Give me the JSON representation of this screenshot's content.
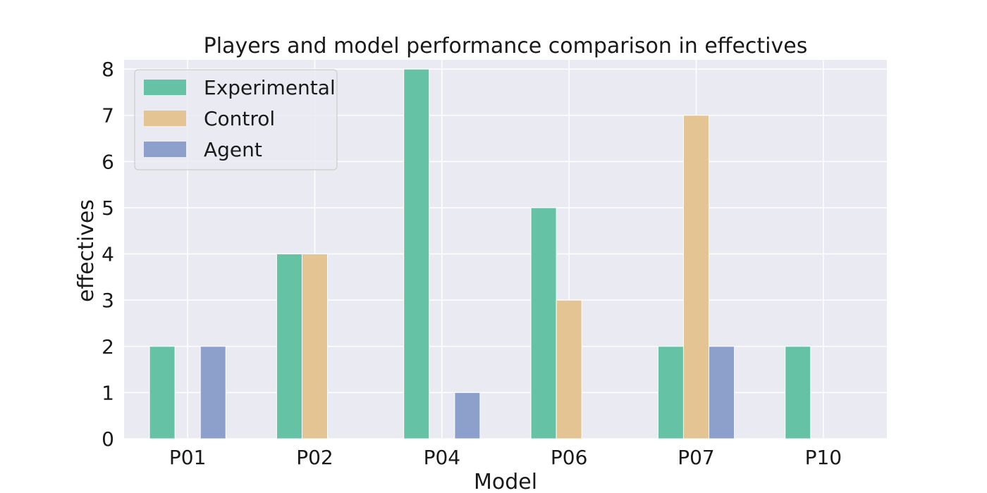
{
  "chart_data": {
    "type": "bar",
    "title": "Players and model performance comparison in effectives",
    "xlabel": "Model",
    "ylabel": "effectives",
    "categories": [
      "P01",
      "P02",
      "P04",
      "P06",
      "P07",
      "P10"
    ],
    "series": [
      {
        "name": "Experimental",
        "color": "#66c2a5",
        "values": [
          2,
          4,
          8,
          5,
          2,
          2
        ]
      },
      {
        "name": "Control",
        "color": "#e5c494",
        "values": [
          0,
          4,
          0,
          3,
          7,
          0
        ]
      },
      {
        "name": "Agent",
        "color": "#8da0cb",
        "values": [
          2,
          0,
          1,
          0,
          2,
          0
        ]
      }
    ],
    "ylim": [
      0,
      8.2
    ],
    "yticks": [
      0,
      1,
      2,
      3,
      4,
      5,
      6,
      7,
      8
    ],
    "grid": true,
    "legend_position": "top-left",
    "plot_background": "#eaeaf2"
  }
}
